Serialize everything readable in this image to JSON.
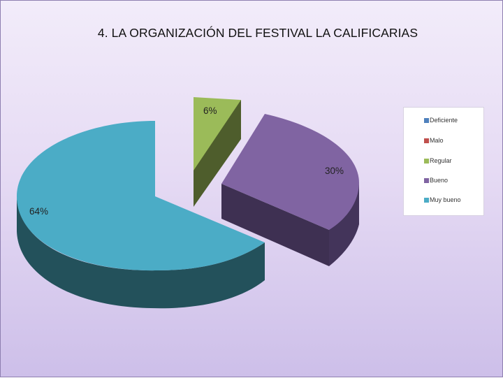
{
  "slide": {
    "title": "4. LA ORGANIZACIÓN DEL FESTIVAL LA CALIFICARIAS"
  },
  "chart_data": {
    "type": "pie",
    "title": "4. LA ORGANIZACIÓN DEL FESTIVAL LA CALIFICARIAS",
    "categories": [
      "Deficiente",
      "Malo",
      "Regular",
      "Bueno",
      "Muy bueno"
    ],
    "values": [
      0,
      0,
      6,
      30,
      64
    ],
    "data_labels": [
      "",
      "",
      "6%",
      "30%",
      "64%"
    ],
    "colors": [
      "#4f81bd",
      "#c0504d",
      "#9bbb59",
      "#8064a2",
      "#4bacc6"
    ],
    "side_colors": [
      "#2c4d72",
      "#722f2d",
      "#4e5d2c",
      "#3e3052",
      "#23515b"
    ],
    "legend_position": "right",
    "style": "3d-exploded"
  }
}
